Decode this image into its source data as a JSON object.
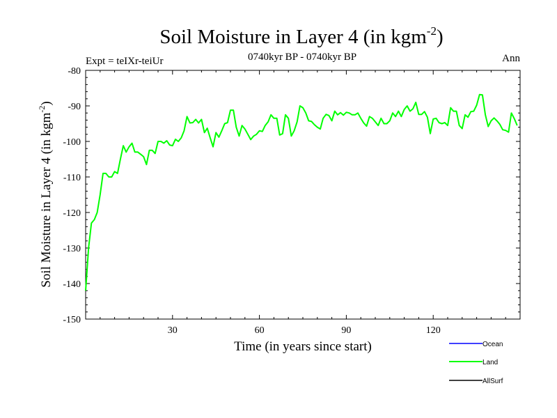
{
  "title_main": "Soil Moisture in Layer 4 (in kgm",
  "title_sup": "-2",
  "title_close": ")",
  "subtitle": "0740kyr BP - 0740kyr BP",
  "expt_label": "Expt = teIXr-teiUr",
  "season_label": "Ann",
  "colors": {
    "ocean": "#0000ff",
    "land": "#00ff00",
    "allsurf": "#000000",
    "axis": "#000000"
  },
  "chart_data": {
    "type": "line",
    "title": "Soil Moisture in Layer 4 (in kgm-2)",
    "xlabel": "Time (in years since start)",
    "ylabel_main": "Soil Moisture in Layer 4 (in kgm",
    "ylabel_sup": "-2",
    "ylabel_close": ")",
    "xlim": [
      0,
      150
    ],
    "ylim": [
      -150,
      -80
    ],
    "xticks": [
      30,
      60,
      90,
      120
    ],
    "yticks": [
      -150,
      -140,
      -130,
      -120,
      -110,
      -100,
      -90,
      -80
    ],
    "legend": [
      {
        "name": "Ocean",
        "color": "#0000ff"
      },
      {
        "name": "Land",
        "color": "#00ff00"
      },
      {
        "name": "AllSurf",
        "color": "#000000"
      }
    ],
    "series": [
      {
        "name": "Land",
        "color": "#00ff00",
        "x_start": 0,
        "x_step": 1,
        "values": [
          -142,
          -130,
          -123,
          -122,
          -120,
          -115,
          -109,
          -109,
          -110,
          -110,
          -108.5,
          -109,
          -105,
          -101.2,
          -103,
          -101.5,
          -100.5,
          -103,
          -103,
          -103.6,
          -104.3,
          -106.5,
          -102.5,
          -102.5,
          -103.4,
          -100,
          -100,
          -100.5,
          -99.8,
          -101,
          -101.2,
          -99.4,
          -100,
          -99,
          -97,
          -93,
          -94.8,
          -94.7,
          -93.8,
          -94.8,
          -93.8,
          -97.5,
          -96.3,
          -99,
          -101.5,
          -97.5,
          -98.8,
          -97,
          -95,
          -94.7,
          -91.2,
          -91.2,
          -96,
          -98.5,
          -95.5,
          -96.5,
          -98,
          -99.5,
          -98.5,
          -98,
          -97,
          -97.2,
          -95.5,
          -94.5,
          -92.5,
          -93.5,
          -93.5,
          -98.2,
          -97.8,
          -92.5,
          -93.5,
          -98.5,
          -97,
          -94.5,
          -90,
          -90.5,
          -92,
          -94.2,
          -94.4,
          -95.3,
          -96,
          -96.5,
          -93.5,
          -92.4,
          -92.7,
          -94.2,
          -91.5,
          -92.5,
          -91.9,
          -92.6,
          -91.8,
          -92,
          -92.5,
          -92.5,
          -92,
          -93.5,
          -94.8,
          -95.7,
          -93,
          -93.5,
          -94.5,
          -95.5,
          -93.5,
          -95,
          -95,
          -94.2,
          -92,
          -93,
          -91.5,
          -93,
          -91,
          -90,
          -91.5,
          -90.8,
          -89,
          -92.4,
          -92.4,
          -91.6,
          -93.2,
          -97.8,
          -93.7,
          -93.5,
          -94.7,
          -95,
          -94.7,
          -95.5,
          -90.5,
          -91.5,
          -91.5,
          -95.5,
          -96.4,
          -92.5,
          -93.2,
          -91.6,
          -91.5,
          -89.8,
          -86.8,
          -86.9,
          -92.5,
          -95.8,
          -94.2,
          -93.4,
          -94.2,
          -95.2,
          -96.7,
          -96.9,
          -97.4,
          -92,
          -93.6,
          -95.5
        ]
      }
    ]
  }
}
